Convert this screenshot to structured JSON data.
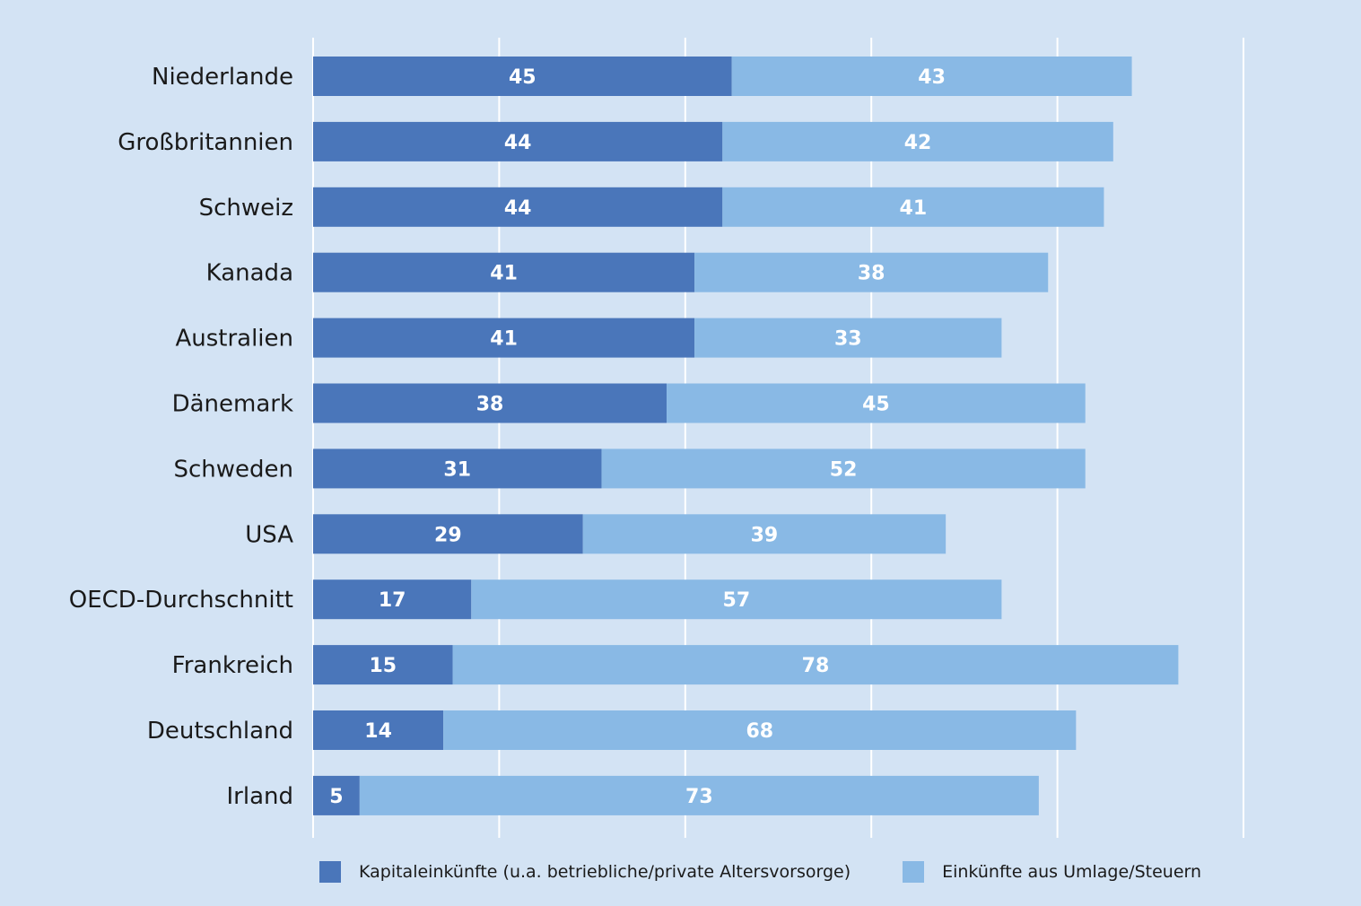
{
  "chart_data": {
    "type": "bar",
    "orientation": "horizontal",
    "stacked": true,
    "categories": [
      "Niederlande",
      "Großbritannien",
      "Schweiz",
      "Kanada",
      "Australien",
      "Dänemark",
      "Schweden",
      "USA",
      "OECD-Durchschnitt",
      "Frankreich",
      "Deutschland",
      "Irland"
    ],
    "series": [
      {
        "name": "Kapitaleinkünfte (u.a. betriebliche/private Altersvorsorge)",
        "color": "#4a76ba",
        "values": [
          45,
          44,
          44,
          41,
          41,
          38,
          31,
          29,
          17,
          15,
          14,
          5
        ]
      },
      {
        "name": "Einkünfte aus Umlage/Steuern",
        "color": "#89b9e5",
        "values": [
          43,
          42,
          41,
          38,
          33,
          45,
          52,
          39,
          57,
          78,
          68,
          73
        ]
      }
    ],
    "xlim": [
      0,
      100
    ],
    "grid": true,
    "legend_position": "bottom",
    "background": "#d3e3f4",
    "gridline_color": "#ffffff",
    "label_color": "#ffffff"
  }
}
